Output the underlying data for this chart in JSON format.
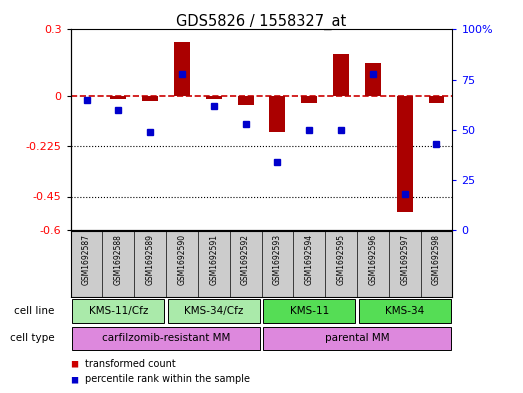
{
  "title": "GDS5826 / 1558327_at",
  "samples": [
    "GSM1692587",
    "GSM1692588",
    "GSM1692589",
    "GSM1692590",
    "GSM1692591",
    "GSM1692592",
    "GSM1692593",
    "GSM1692594",
    "GSM1692595",
    "GSM1692596",
    "GSM1692597",
    "GSM1692598"
  ],
  "transformed_count": [
    0.0,
    -0.01,
    -0.02,
    0.245,
    -0.01,
    -0.04,
    -0.16,
    -0.03,
    0.19,
    0.15,
    -0.52,
    -0.03
  ],
  "percentile_rank": [
    65,
    60,
    49,
    78,
    62,
    53,
    34,
    50,
    50,
    78,
    18,
    43
  ],
  "ylim_left": [
    -0.6,
    0.3
  ],
  "ylim_right": [
    0,
    100
  ],
  "yticks_left": [
    0.3,
    0,
    -0.225,
    -0.45,
    -0.6
  ],
  "yticks_right": [
    100,
    75,
    50,
    25,
    0
  ],
  "hlines": [
    -0.225,
    -0.45
  ],
  "cell_line_groups": [
    {
      "label": "KMS-11/Cfz",
      "start": 0,
      "end": 3,
      "color": "#aaeaaa"
    },
    {
      "label": "KMS-34/Cfz",
      "start": 3,
      "end": 6,
      "color": "#aaeaaa"
    },
    {
      "label": "KMS-11",
      "start": 6,
      "end": 9,
      "color": "#55dd55"
    },
    {
      "label": "KMS-34",
      "start": 9,
      "end": 12,
      "color": "#55dd55"
    }
  ],
  "cell_type_groups": [
    {
      "label": "carfilzomib-resistant MM",
      "start": 0,
      "end": 6,
      "color": "#dd88dd"
    },
    {
      "label": "parental MM",
      "start": 6,
      "end": 12,
      "color": "#dd88dd"
    }
  ],
  "bar_color": "#aa0000",
  "dot_color": "#0000cc",
  "zero_line_color": "#cc0000",
  "hline_color": "#000000",
  "legend_bar_color": "#cc0000",
  "legend_dot_color": "#0000cc",
  "background_color": "#ffffff",
  "sample_bg": "#cccccc"
}
